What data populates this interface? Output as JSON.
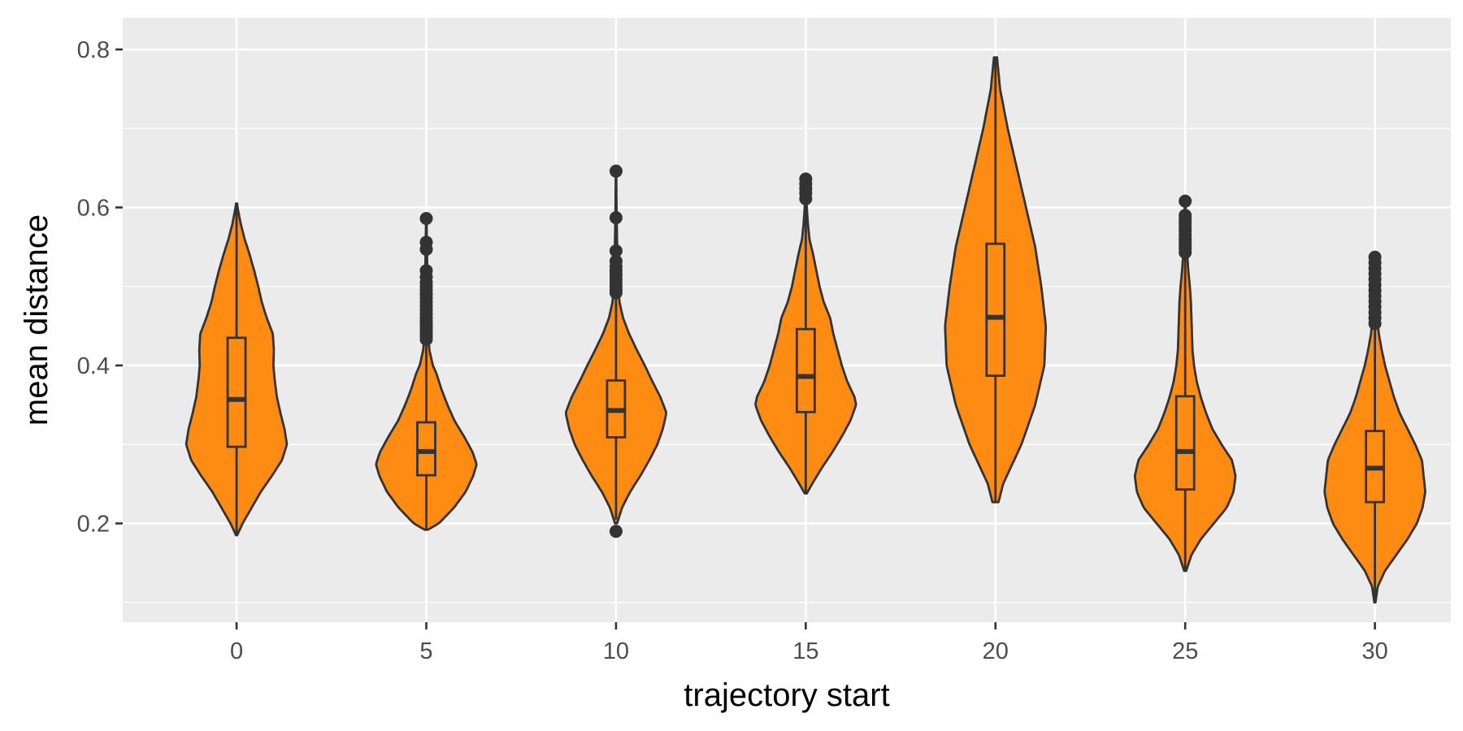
{
  "chart_data": {
    "type": "violin",
    "xlabel": "trajectory start",
    "ylabel": "mean distance",
    "ylim": [
      0.075,
      0.84
    ],
    "y_ticks": [
      0.2,
      0.4,
      0.6,
      0.8
    ],
    "y_minor": [
      0.1,
      0.3,
      0.5,
      0.7
    ],
    "xlim": [
      -3,
      32
    ],
    "x_ticks": [
      0,
      5,
      10,
      15,
      20,
      25,
      30
    ],
    "grid": true,
    "legend": "none",
    "colors": {
      "fill": "#ff8c12",
      "outline": "#333333",
      "panel": "#ebebeb",
      "grid": "#ffffff"
    },
    "groups": [
      {
        "x": 0,
        "box": {
          "min": 0.185,
          "q1": 0.297,
          "median": 0.357,
          "q3": 0.435,
          "max": 0.605
        },
        "outliers": [],
        "density": [
          [
            0.185,
            0.01
          ],
          [
            0.2,
            0.12
          ],
          [
            0.22,
            0.3
          ],
          [
            0.24,
            0.48
          ],
          [
            0.26,
            0.7
          ],
          [
            0.28,
            0.9
          ],
          [
            0.3,
            1.0
          ],
          [
            0.32,
            0.95
          ],
          [
            0.34,
            0.87
          ],
          [
            0.36,
            0.8
          ],
          [
            0.38,
            0.76
          ],
          [
            0.4,
            0.73
          ],
          [
            0.42,
            0.74
          ],
          [
            0.44,
            0.72
          ],
          [
            0.46,
            0.6
          ],
          [
            0.48,
            0.5
          ],
          [
            0.5,
            0.43
          ],
          [
            0.52,
            0.35
          ],
          [
            0.54,
            0.26
          ],
          [
            0.56,
            0.16
          ],
          [
            0.58,
            0.08
          ],
          [
            0.6,
            0.02
          ],
          [
            0.605,
            0.01
          ]
        ]
      },
      {
        "x": 5,
        "box": {
          "min": 0.192,
          "q1": 0.261,
          "median": 0.291,
          "q3": 0.328,
          "max": 0.43
        },
        "outliers": [
          0.433,
          0.437,
          0.441,
          0.445,
          0.449,
          0.452,
          0.456,
          0.46,
          0.465,
          0.47,
          0.475,
          0.48,
          0.485,
          0.49,
          0.495,
          0.5,
          0.505,
          0.512,
          0.52,
          0.547,
          0.556,
          0.586
        ],
        "density": [
          [
            0.192,
            0.03
          ],
          [
            0.2,
            0.25
          ],
          [
            0.22,
            0.55
          ],
          [
            0.24,
            0.78
          ],
          [
            0.26,
            0.93
          ],
          [
            0.275,
            1.0
          ],
          [
            0.29,
            0.92
          ],
          [
            0.31,
            0.75
          ],
          [
            0.33,
            0.56
          ],
          [
            0.35,
            0.42
          ],
          [
            0.37,
            0.3
          ],
          [
            0.39,
            0.2
          ],
          [
            0.4,
            0.13
          ],
          [
            0.42,
            0.06
          ],
          [
            0.44,
            0.04
          ],
          [
            0.46,
            0.035
          ],
          [
            0.48,
            0.03
          ],
          [
            0.5,
            0.025
          ],
          [
            0.52,
            0.02
          ],
          [
            0.54,
            0.015
          ],
          [
            0.56,
            0.01
          ],
          [
            0.586,
            0.005
          ]
        ]
      },
      {
        "x": 10,
        "box": {
          "min": 0.205,
          "q1": 0.309,
          "median": 0.343,
          "q3": 0.381,
          "max": 0.49
        },
        "outliers": [
          0.19,
          0.492,
          0.496,
          0.5,
          0.505,
          0.51,
          0.515,
          0.52,
          0.525,
          0.532,
          0.545,
          0.587,
          0.646
        ],
        "density": [
          [
            0.2,
            0.02
          ],
          [
            0.22,
            0.12
          ],
          [
            0.24,
            0.28
          ],
          [
            0.26,
            0.48
          ],
          [
            0.28,
            0.66
          ],
          [
            0.3,
            0.82
          ],
          [
            0.32,
            0.93
          ],
          [
            0.34,
            1.0
          ],
          [
            0.36,
            0.88
          ],
          [
            0.38,
            0.72
          ],
          [
            0.4,
            0.57
          ],
          [
            0.42,
            0.41
          ],
          [
            0.44,
            0.26
          ],
          [
            0.46,
            0.14
          ],
          [
            0.48,
            0.07
          ],
          [
            0.5,
            0.04
          ],
          [
            0.54,
            0.025
          ],
          [
            0.58,
            0.015
          ],
          [
            0.6,
            0.01
          ],
          [
            0.646,
            0.005
          ]
        ]
      },
      {
        "x": 15,
        "box": {
          "min": 0.238,
          "q1": 0.341,
          "median": 0.386,
          "q3": 0.446,
          "max": 0.61
        },
        "outliers": [
          0.611,
          0.618,
          0.624,
          0.63,
          0.636
        ],
        "density": [
          [
            0.238,
            0.02
          ],
          [
            0.25,
            0.12
          ],
          [
            0.27,
            0.3
          ],
          [
            0.29,
            0.5
          ],
          [
            0.31,
            0.68
          ],
          [
            0.33,
            0.84
          ],
          [
            0.35,
            0.95
          ],
          [
            0.36,
            0.92
          ],
          [
            0.38,
            0.78
          ],
          [
            0.4,
            0.68
          ],
          [
            0.42,
            0.6
          ],
          [
            0.44,
            0.52
          ],
          [
            0.46,
            0.46
          ],
          [
            0.48,
            0.34
          ],
          [
            0.5,
            0.26
          ],
          [
            0.52,
            0.2
          ],
          [
            0.54,
            0.14
          ],
          [
            0.56,
            0.07
          ],
          [
            0.58,
            0.04
          ],
          [
            0.6,
            0.02
          ],
          [
            0.636,
            0.01
          ]
        ]
      },
      {
        "x": 20,
        "box": {
          "min": 0.227,
          "q1": 0.387,
          "median": 0.461,
          "q3": 0.554,
          "max": 0.79
        },
        "outliers": [],
        "density": [
          [
            0.227,
            0.02
          ],
          [
            0.25,
            0.05
          ],
          [
            0.3,
            0.17
          ],
          [
            0.35,
            0.26
          ],
          [
            0.4,
            0.32
          ],
          [
            0.45,
            0.33
          ],
          [
            0.5,
            0.3
          ],
          [
            0.55,
            0.26
          ],
          [
            0.6,
            0.2
          ],
          [
            0.65,
            0.14
          ],
          [
            0.7,
            0.08
          ],
          [
            0.75,
            0.03
          ],
          [
            0.79,
            0.01
          ]
        ]
      },
      {
        "x": 25,
        "box": {
          "min": 0.14,
          "q1": 0.243,
          "median": 0.291,
          "q3": 0.361,
          "max": 0.54
        },
        "outliers": [
          0.543,
          0.548,
          0.552,
          0.556,
          0.56,
          0.565,
          0.57,
          0.575,
          0.58,
          0.585,
          0.59,
          0.608
        ],
        "density": [
          [
            0.14,
            0.02
          ],
          [
            0.16,
            0.12
          ],
          [
            0.18,
            0.3
          ],
          [
            0.2,
            0.55
          ],
          [
            0.22,
            0.8
          ],
          [
            0.24,
            0.93
          ],
          [
            0.26,
            0.97
          ],
          [
            0.28,
            0.9
          ],
          [
            0.3,
            0.7
          ],
          [
            0.32,
            0.52
          ],
          [
            0.34,
            0.4
          ],
          [
            0.36,
            0.3
          ],
          [
            0.38,
            0.22
          ],
          [
            0.4,
            0.17
          ],
          [
            0.42,
            0.14
          ],
          [
            0.44,
            0.13
          ],
          [
            0.46,
            0.12
          ],
          [
            0.48,
            0.11
          ],
          [
            0.5,
            0.09
          ],
          [
            0.52,
            0.06
          ],
          [
            0.54,
            0.04
          ],
          [
            0.56,
            0.02
          ],
          [
            0.608,
            0.005
          ]
        ]
      },
      {
        "x": 30,
        "box": {
          "min": 0.1,
          "q1": 0.227,
          "median": 0.27,
          "q3": 0.317,
          "max": 0.45
        },
        "outliers": [
          0.453,
          0.46,
          0.467,
          0.474,
          0.481,
          0.488,
          0.495,
          0.502,
          0.509,
          0.516,
          0.523,
          0.53,
          0.537
        ],
        "density": [
          [
            0.1,
            0.01
          ],
          [
            0.12,
            0.05
          ],
          [
            0.14,
            0.18
          ],
          [
            0.16,
            0.38
          ],
          [
            0.18,
            0.58
          ],
          [
            0.2,
            0.75
          ],
          [
            0.22,
            0.85
          ],
          [
            0.24,
            0.9
          ],
          [
            0.26,
            0.87
          ],
          [
            0.28,
            0.84
          ],
          [
            0.3,
            0.72
          ],
          [
            0.32,
            0.58
          ],
          [
            0.34,
            0.44
          ],
          [
            0.36,
            0.34
          ],
          [
            0.38,
            0.26
          ],
          [
            0.4,
            0.18
          ],
          [
            0.42,
            0.12
          ],
          [
            0.44,
            0.07
          ],
          [
            0.46,
            0.04
          ],
          [
            0.5,
            0.02
          ],
          [
            0.537,
            0.005
          ]
        ]
      }
    ]
  }
}
